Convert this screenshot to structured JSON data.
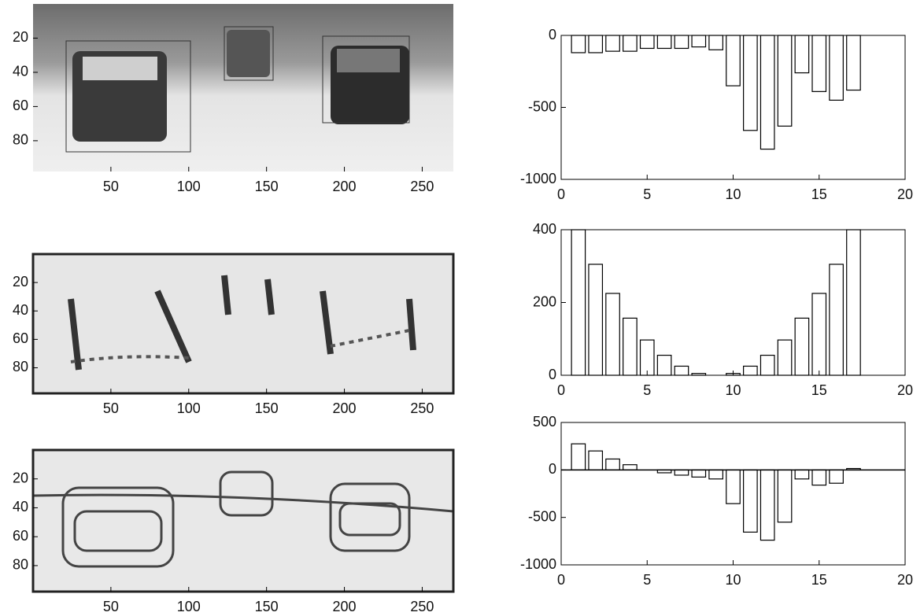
{
  "chart_data": [
    {
      "type": "image",
      "xlim": [
        0,
        270
      ],
      "ylim": [
        0,
        98
      ],
      "y_reversed": true,
      "xticks": [
        50,
        100,
        150,
        200,
        250
      ],
      "yticks": [
        20,
        40,
        60,
        80
      ]
    },
    {
      "type": "image",
      "xlim": [
        0,
        270
      ],
      "ylim": [
        0,
        98
      ],
      "y_reversed": true,
      "xticks": [
        50,
        100,
        150,
        200,
        250
      ],
      "yticks": [
        20,
        40,
        60,
        80
      ]
    },
    {
      "type": "image",
      "xlim": [
        0,
        270
      ],
      "ylim": [
        0,
        98
      ],
      "y_reversed": true,
      "xticks": [
        50,
        100,
        150,
        200,
        250
      ],
      "yticks": [
        20,
        40,
        60,
        80
      ]
    },
    {
      "type": "bar",
      "x": [
        1,
        2,
        3,
        4,
        5,
        6,
        7,
        8,
        9,
        10,
        11,
        12,
        13,
        14,
        15,
        16,
        17
      ],
      "values": [
        -120,
        -120,
        -110,
        -110,
        -90,
        -90,
        -90,
        -80,
        -100,
        -350,
        -660,
        -790,
        -630,
        -260,
        -390,
        -450,
        -380
      ],
      "color": "#ffffff",
      "xlim": [
        0,
        20
      ],
      "ylim": [
        -1000,
        0
      ],
      "xticks": [
        0,
        5,
        10,
        15,
        20
      ],
      "yticks": [
        -1000,
        -500,
        0
      ]
    },
    {
      "type": "bar",
      "x": [
        1,
        2,
        3,
        4,
        5,
        6,
        7,
        8,
        9,
        10,
        11,
        12,
        13,
        14,
        15,
        16,
        17
      ],
      "values": [
        400,
        305,
        225,
        157,
        97,
        55,
        25,
        5,
        0,
        5,
        25,
        55,
        97,
        157,
        225,
        305,
        400
      ],
      "color": "#ffffff",
      "xlim": [
        0,
        20
      ],
      "ylim": [
        0,
        400
      ],
      "xticks": [
        0,
        5,
        10,
        15,
        20
      ],
      "yticks": [
        0,
        200,
        400
      ]
    },
    {
      "type": "bar",
      "x": [
        1,
        2,
        3,
        4,
        5,
        6,
        7,
        8,
        9,
        10,
        11,
        12,
        13,
        14,
        15,
        16,
        17
      ],
      "values": [
        275,
        200,
        115,
        55,
        0,
        -30,
        -55,
        -75,
        -95,
        -355,
        -655,
        -740,
        -550,
        -95,
        -160,
        -140,
        15
      ],
      "color": "#ffffff",
      "xlim": [
        0,
        20
      ],
      "ylim": [
        -1000,
        500
      ],
      "xticks": [
        0,
        5,
        10,
        15,
        20
      ],
      "yticks": [
        -1000,
        -500,
        0,
        500
      ]
    }
  ]
}
